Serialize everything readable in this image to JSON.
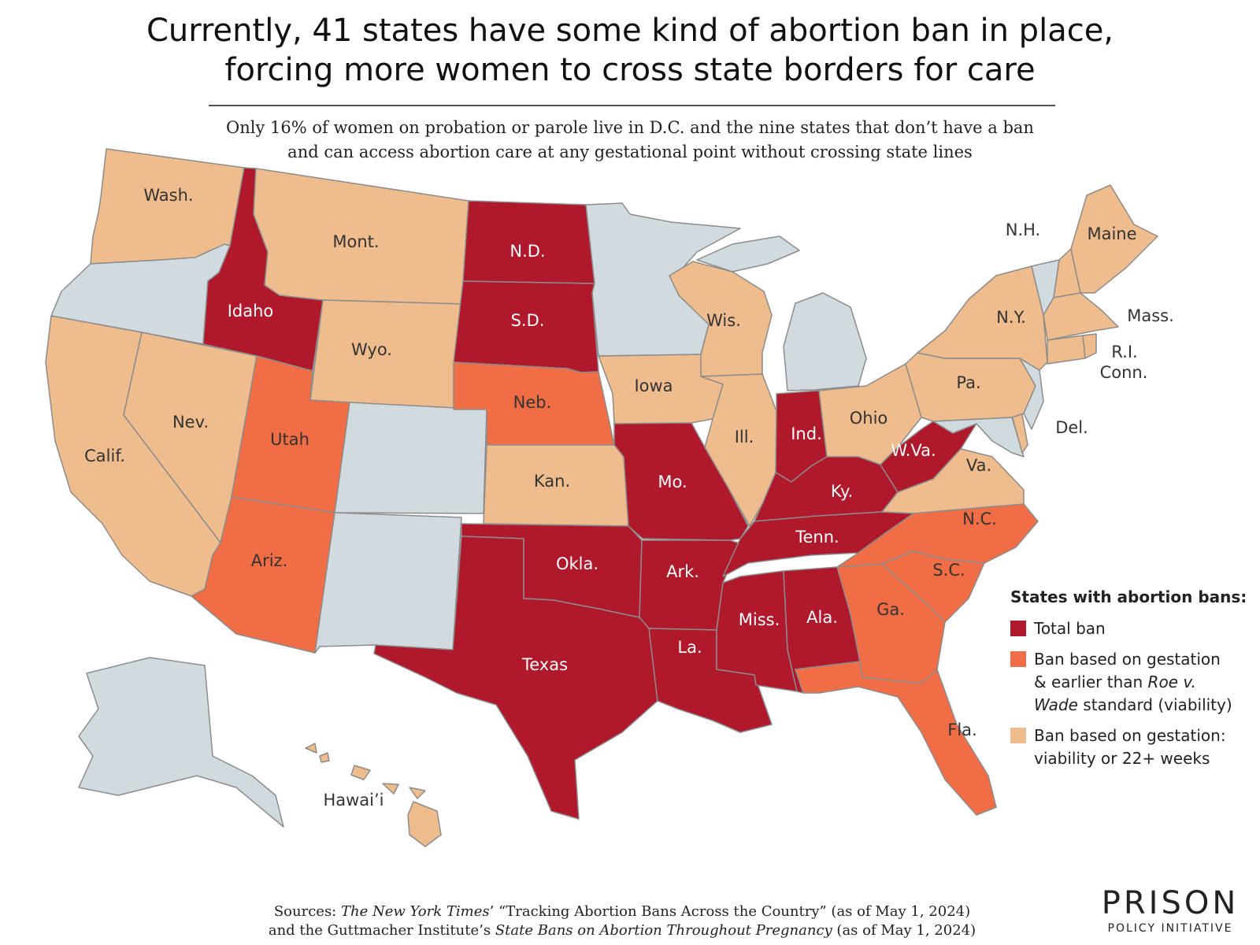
{
  "title_line1": "Currently, 41 states have some kind of abortion ban in place,",
  "title_line2": "forcing more women to cross state borders for care",
  "subtitle_line1": "Only 16% of women on probation or parole live in D.C. and the nine states that don’t have a ban",
  "subtitle_line2": "and can access abortion care at any gestational point without crossing state lines",
  "colors": {
    "total": "#b0182b",
    "early": "#f16d45",
    "viability": "#efbc8d",
    "none": "#d1dbdf",
    "border": "#8c8c8c"
  },
  "legend": {
    "title": "States with abortion bans:",
    "total": "Total ban",
    "early_line1": "Ban based on gestation",
    "early_line2_pre": "& earlier than ",
    "early_line2_em": "Roe v.",
    "early_line3_em": "Wade",
    "early_line3_post": " standard (viability)",
    "viability_line1": "Ban based on gestation:",
    "viability_line2": "viability or 22+ weeks"
  },
  "states": {
    "wa": {
      "label": "Wash.",
      "status": "viability"
    },
    "or": {
      "label": "",
      "status": "none"
    },
    "ca": {
      "label": "Calif.",
      "status": "viability"
    },
    "nv": {
      "label": "Nev.",
      "status": "viability"
    },
    "id": {
      "label": "Idaho",
      "status": "total"
    },
    "mt": {
      "label": "Mont.",
      "status": "viability"
    },
    "wy": {
      "label": "Wyo.",
      "status": "viability"
    },
    "ut": {
      "label": "Utah",
      "status": "early"
    },
    "az": {
      "label": "Ariz.",
      "status": "early"
    },
    "co": {
      "label": "",
      "status": "none"
    },
    "nm": {
      "label": "",
      "status": "none"
    },
    "nd": {
      "label": "N.D.",
      "status": "total"
    },
    "sd": {
      "label": "S.D.",
      "status": "total"
    },
    "ne": {
      "label": "Neb.",
      "status": "early"
    },
    "ks": {
      "label": "Kan.",
      "status": "viability"
    },
    "ok": {
      "label": "Okla.",
      "status": "total"
    },
    "tx": {
      "label": "Texas",
      "status": "total"
    },
    "mn": {
      "label": "",
      "status": "none"
    },
    "ia": {
      "label": "Iowa",
      "status": "viability"
    },
    "mo": {
      "label": "Mo.",
      "status": "total"
    },
    "ar": {
      "label": "Ark.",
      "status": "total"
    },
    "la": {
      "label": "La.",
      "status": "total"
    },
    "wi": {
      "label": "Wis.",
      "status": "viability"
    },
    "il": {
      "label": "Ill.",
      "status": "viability"
    },
    "mi": {
      "label": "",
      "status": "none"
    },
    "in": {
      "label": "Ind.",
      "status": "total"
    },
    "oh": {
      "label": "Ohio",
      "status": "viability"
    },
    "ky": {
      "label": "Ky.",
      "status": "total"
    },
    "tn": {
      "label": "Tenn.",
      "status": "total"
    },
    "ms": {
      "label": "Miss.",
      "status": "total"
    },
    "al": {
      "label": "Ala.",
      "status": "total"
    },
    "ga": {
      "label": "Ga.",
      "status": "early"
    },
    "fl": {
      "label": "Fla.",
      "status": "early"
    },
    "sc": {
      "label": "S.C.",
      "status": "early"
    },
    "nc": {
      "label": "N.C.",
      "status": "early"
    },
    "va": {
      "label": "Va.",
      "status": "viability"
    },
    "wv": {
      "label": "W.Va.",
      "status": "total"
    },
    "pa": {
      "label": "Pa.",
      "status": "viability"
    },
    "ny": {
      "label": "N.Y.",
      "status": "viability"
    },
    "vt": {
      "label": "",
      "status": "none"
    },
    "nh": {
      "label": "N.H.",
      "status": "viability"
    },
    "me": {
      "label": "Maine",
      "status": "viability"
    },
    "ma": {
      "label": "Mass.",
      "status": "viability"
    },
    "ri": {
      "label": "R.I.",
      "status": "viability"
    },
    "ct": {
      "label": "Conn.",
      "status": "viability"
    },
    "nj": {
      "label": "",
      "status": "none"
    },
    "de": {
      "label": "Del.",
      "status": "viability"
    },
    "md": {
      "label": "",
      "status": "none"
    },
    "ak": {
      "label": "",
      "status": "none"
    },
    "hi": {
      "label": "Hawai’i",
      "status": "viability"
    }
  },
  "sources_line1_pre": "Sources: ",
  "sources_line1_em": "The New York Times",
  "sources_line1_post": "’ “Tracking Abortion Bans Across the Country” (as of May 1, 2024)",
  "sources_line2_pre": "and the Guttmacher Institute’s ",
  "sources_line2_em": "State Bans on Abortion Throughout Pregnancy",
  "sources_line2_post": " (as of May 1, 2024)",
  "logo_top": "PRISON",
  "logo_bottom": "POLICY INITIATIVE"
}
